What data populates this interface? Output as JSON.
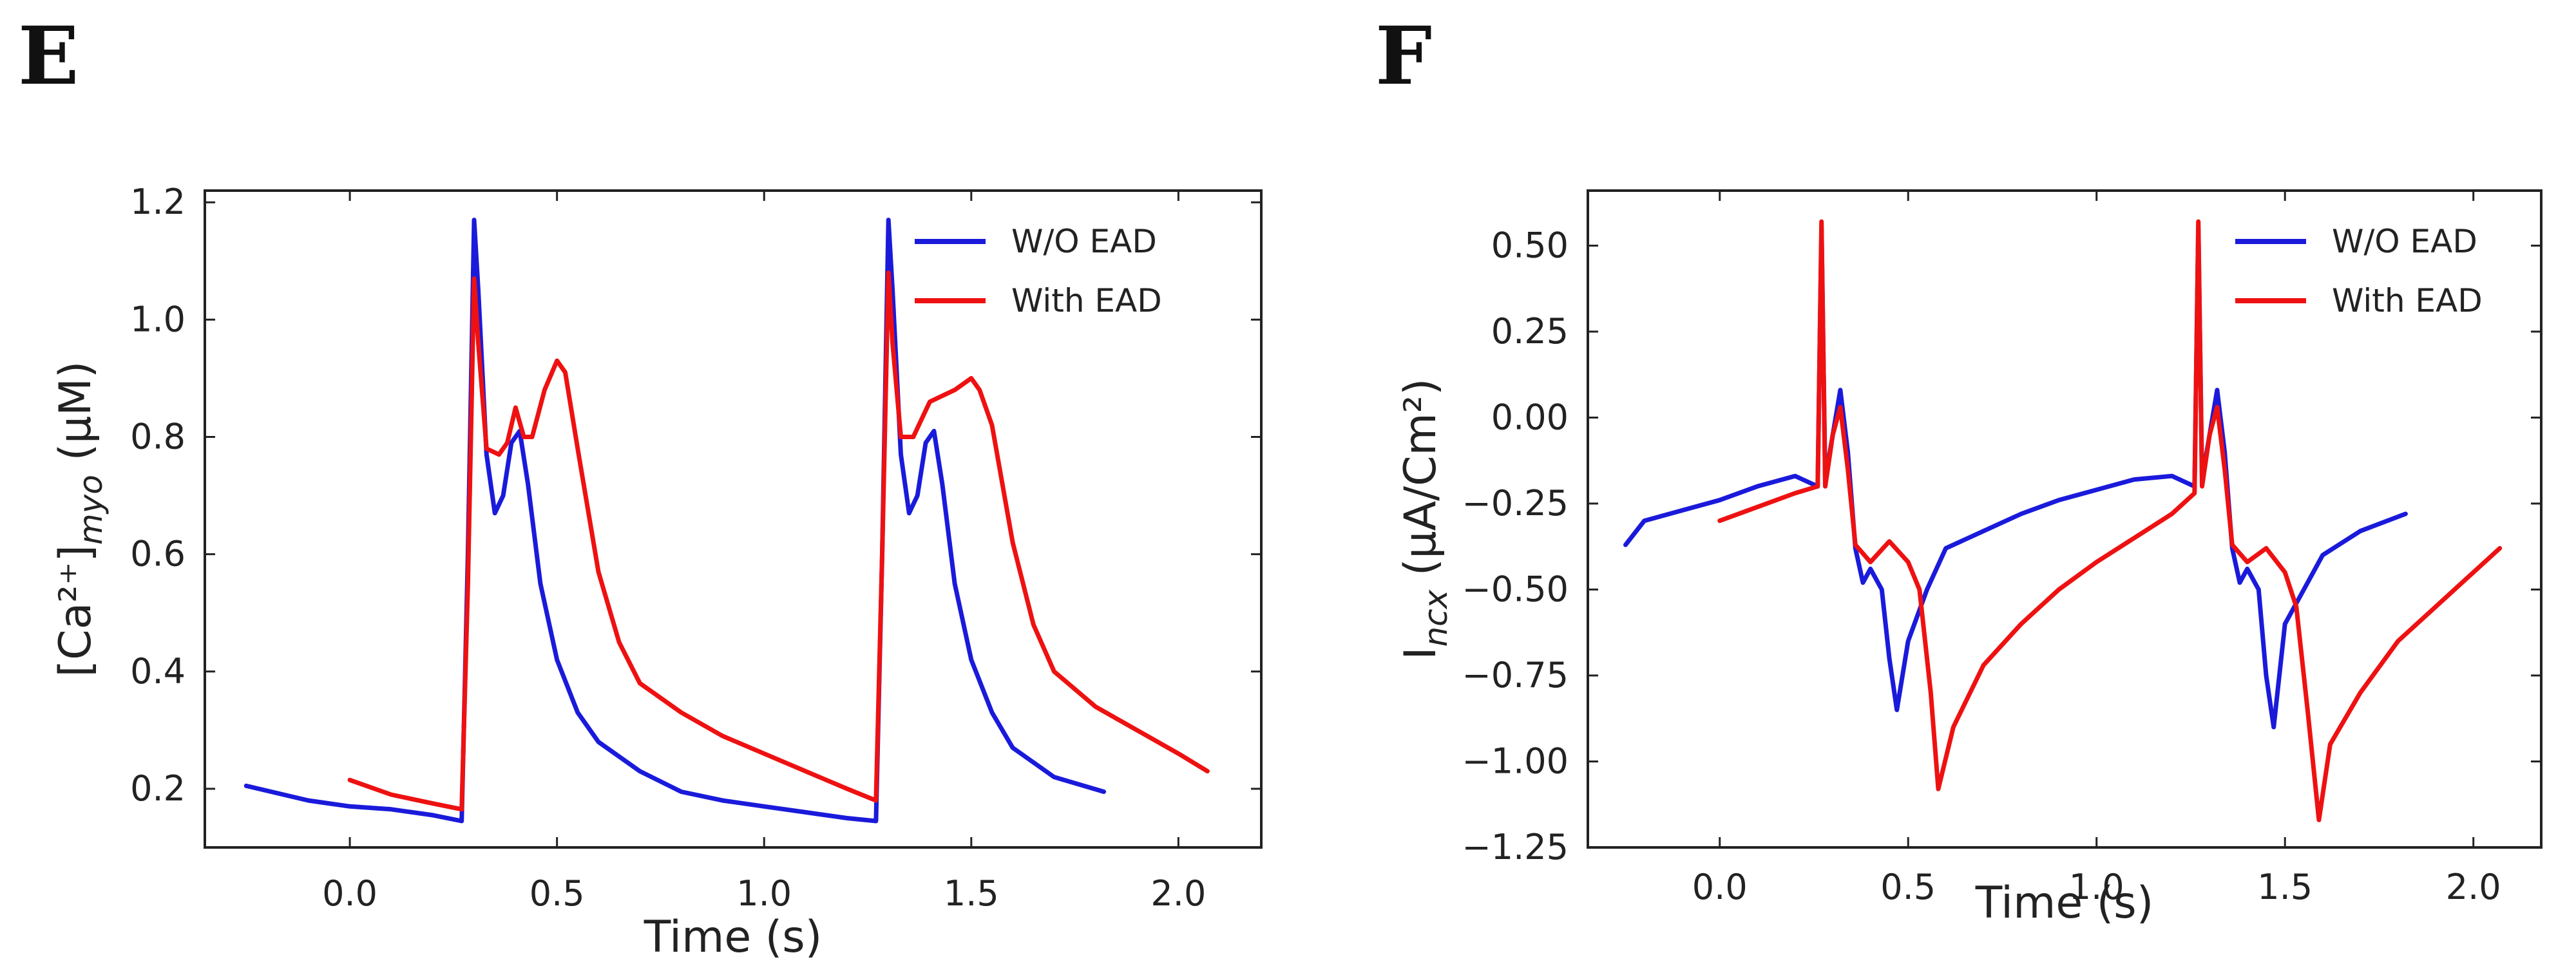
{
  "colors": {
    "without_ead": "#1a1adb",
    "with_ead": "#ee1111",
    "axis": "#222222"
  },
  "chart_data": [
    {
      "panel_label": "E",
      "type": "line",
      "title": "",
      "xlabel": "Time (s)",
      "ylabel": "[Ca²⁺]",
      "ylabel_sub": "myo",
      "ylabel_unit": " (μM)",
      "xlim": [
        -0.35,
        2.2
      ],
      "ylim": [
        0.1,
        1.22
      ],
      "xticks": [
        0.0,
        0.5,
        1.0,
        1.5,
        2.0
      ],
      "xtick_labels": [
        "0.0",
        "0.5",
        "1.0",
        "1.5",
        "2.0"
      ],
      "yticks": [
        0.2,
        0.4,
        0.6,
        0.8,
        1.0,
        1.2
      ],
      "ytick_labels": [
        "0.2",
        "0.4",
        "0.6",
        "0.8",
        "1.0",
        "1.2"
      ],
      "legend_position": "top-right",
      "series": [
        {
          "name": "W/O EAD",
          "color_key": "without_ead",
          "x": [
            -0.25,
            -0.1,
            0.0,
            0.1,
            0.2,
            0.27,
            0.285,
            0.3,
            0.31,
            0.33,
            0.35,
            0.37,
            0.39,
            0.41,
            0.43,
            0.46,
            0.5,
            0.55,
            0.6,
            0.7,
            0.8,
            0.9,
            1.0,
            1.1,
            1.2,
            1.27,
            1.285,
            1.3,
            1.31,
            1.33,
            1.35,
            1.37,
            1.39,
            1.41,
            1.43,
            1.46,
            1.5,
            1.55,
            1.6,
            1.7,
            1.82
          ],
          "y": [
            0.205,
            0.18,
            0.17,
            0.165,
            0.155,
            0.145,
            0.6,
            1.17,
            1.05,
            0.77,
            0.67,
            0.7,
            0.79,
            0.81,
            0.72,
            0.55,
            0.42,
            0.33,
            0.28,
            0.23,
            0.195,
            0.18,
            0.17,
            0.16,
            0.15,
            0.145,
            0.6,
            1.17,
            1.05,
            0.77,
            0.67,
            0.7,
            0.79,
            0.81,
            0.72,
            0.55,
            0.42,
            0.33,
            0.27,
            0.22,
            0.195
          ]
        },
        {
          "name": "With EAD",
          "color_key": "with_ead",
          "x": [
            0.0,
            0.1,
            0.2,
            0.27,
            0.285,
            0.3,
            0.31,
            0.33,
            0.36,
            0.38,
            0.4,
            0.42,
            0.44,
            0.47,
            0.5,
            0.52,
            0.55,
            0.6,
            0.65,
            0.7,
            0.8,
            0.9,
            1.0,
            1.1,
            1.2,
            1.27,
            1.285,
            1.3,
            1.31,
            1.33,
            1.36,
            1.38,
            1.4,
            1.43,
            1.46,
            1.5,
            1.52,
            1.55,
            1.6,
            1.65,
            1.7,
            1.8,
            1.9,
            2.0,
            2.07
          ],
          "y": [
            0.215,
            0.19,
            0.175,
            0.165,
            0.55,
            1.07,
            0.96,
            0.78,
            0.77,
            0.79,
            0.85,
            0.8,
            0.8,
            0.88,
            0.93,
            0.91,
            0.78,
            0.57,
            0.45,
            0.38,
            0.33,
            0.29,
            0.26,
            0.23,
            0.2,
            0.18,
            0.6,
            1.08,
            0.96,
            0.8,
            0.8,
            0.83,
            0.86,
            0.87,
            0.88,
            0.9,
            0.88,
            0.82,
            0.62,
            0.48,
            0.4,
            0.34,
            0.3,
            0.26,
            0.23
          ]
        }
      ]
    },
    {
      "panel_label": "F",
      "type": "line",
      "title": "",
      "xlabel": "Time (s)",
      "ylabel": "I",
      "ylabel_sub": "ncx",
      "ylabel_unit": " (μA/Cm²)",
      "xlim": [
        -0.35,
        2.18
      ],
      "ylim": [
        -1.25,
        0.66
      ],
      "xticks": [
        0.0,
        0.5,
        1.0,
        1.5,
        2.0
      ],
      "xtick_labels": [
        "0.0",
        "0.5",
        "1.0",
        "1.5",
        "2.0"
      ],
      "yticks": [
        0.5,
        0.25,
        0.0,
        -0.25,
        -0.5,
        -0.75,
        -1.0,
        -1.25
      ],
      "ytick_labels": [
        "0.50",
        "0.25",
        "0.00",
        "−0.25",
        "−0.50",
        "−0.75",
        "−1.00",
        "−1.25"
      ],
      "legend_position": "top-right",
      "series": [
        {
          "name": "W/O EAD",
          "color_key": "without_ead",
          "x": [
            -0.25,
            -0.2,
            -0.1,
            0.0,
            0.1,
            0.2,
            0.26,
            0.27,
            0.28,
            0.3,
            0.32,
            0.34,
            0.36,
            0.38,
            0.4,
            0.43,
            0.45,
            0.47,
            0.5,
            0.55,
            0.6,
            0.7,
            0.8,
            0.9,
            1.0,
            1.1,
            1.2,
            1.26,
            1.27,
            1.28,
            1.3,
            1.32,
            1.34,
            1.36,
            1.38,
            1.4,
            1.43,
            1.45,
            1.47,
            1.5,
            1.55,
            1.6,
            1.7,
            1.82
          ],
          "y": [
            -0.37,
            -0.3,
            -0.27,
            -0.24,
            -0.2,
            -0.17,
            -0.2,
            0.55,
            -0.18,
            -0.05,
            0.08,
            -0.1,
            -0.38,
            -0.48,
            -0.44,
            -0.5,
            -0.7,
            -0.85,
            -0.65,
            -0.5,
            -0.38,
            -0.33,
            -0.28,
            -0.24,
            -0.21,
            -0.18,
            -0.17,
            -0.2,
            0.55,
            -0.18,
            -0.05,
            0.08,
            -0.1,
            -0.38,
            -0.48,
            -0.44,
            -0.5,
            -0.75,
            -0.9,
            -0.6,
            -0.5,
            -0.4,
            -0.33,
            -0.28
          ]
        },
        {
          "name": "With EAD",
          "color_key": "with_ead",
          "x": [
            0.0,
            0.1,
            0.2,
            0.26,
            0.27,
            0.28,
            0.3,
            0.32,
            0.34,
            0.36,
            0.4,
            0.45,
            0.5,
            0.53,
            0.56,
            0.58,
            0.62,
            0.7,
            0.8,
            0.9,
            1.0,
            1.1,
            1.2,
            1.26,
            1.27,
            1.28,
            1.3,
            1.32,
            1.34,
            1.36,
            1.4,
            1.45,
            1.5,
            1.53,
            1.56,
            1.59,
            1.62,
            1.7,
            1.8,
            1.9,
            2.0,
            2.07
          ],
          "y": [
            -0.3,
            -0.26,
            -0.22,
            -0.2,
            0.57,
            -0.2,
            -0.05,
            0.03,
            -0.15,
            -0.37,
            -0.42,
            -0.36,
            -0.42,
            -0.5,
            -0.8,
            -1.08,
            -0.9,
            -0.72,
            -0.6,
            -0.5,
            -0.42,
            -0.35,
            -0.28,
            -0.22,
            0.57,
            -0.2,
            -0.05,
            0.03,
            -0.15,
            -0.37,
            -0.42,
            -0.38,
            -0.45,
            -0.55,
            -0.85,
            -1.17,
            -0.95,
            -0.8,
            -0.65,
            -0.55,
            -0.45,
            -0.38
          ]
        }
      ]
    }
  ]
}
